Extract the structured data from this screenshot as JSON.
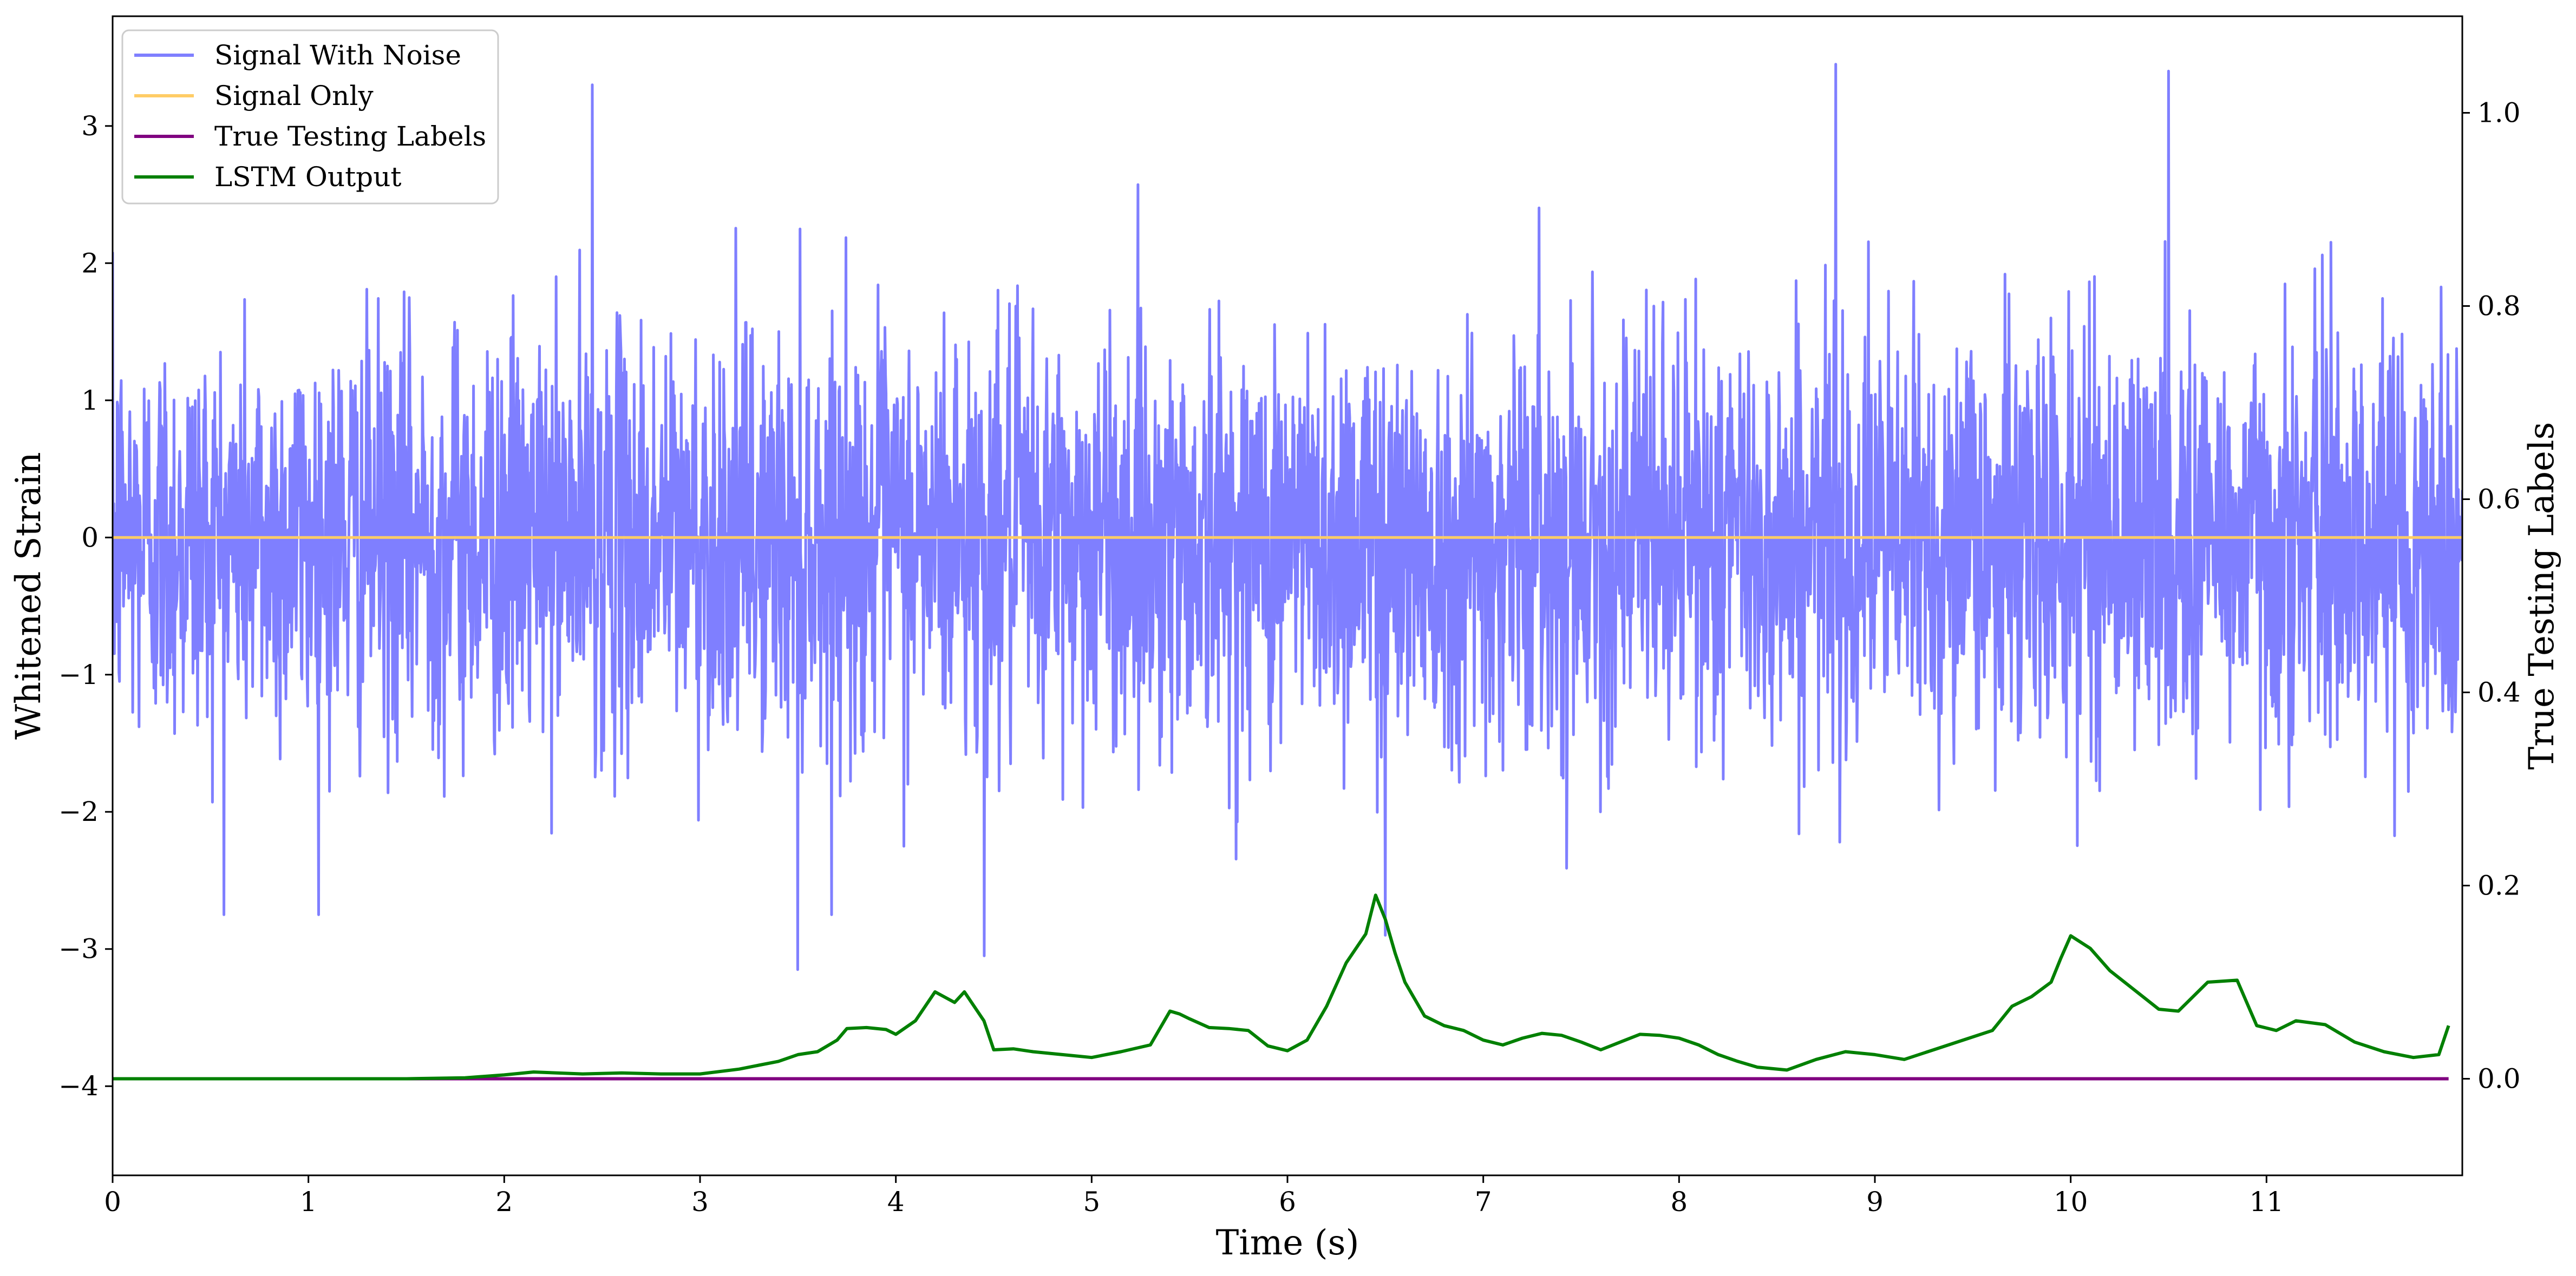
{
  "chart_data": {
    "type": "line",
    "xlabel": "Time (s)",
    "ylabel": "Whitened Strain",
    "y2label": "True Testing Labels",
    "xlim": [
      0,
      12
    ],
    "ylim": [
      -4.65,
      3.8
    ],
    "y2lim": [
      -0.1,
      1.1
    ],
    "xticks": [
      0,
      1,
      2,
      3,
      4,
      5,
      6,
      7,
      8,
      9,
      10,
      11
    ],
    "yticks": [
      -4,
      -3,
      -2,
      -1,
      0,
      1,
      2,
      3
    ],
    "y2ticks": [
      0.0,
      0.2,
      0.4,
      0.6,
      0.8,
      1.0
    ],
    "xtick_labels": [
      "0",
      "1",
      "2",
      "3",
      "4",
      "5",
      "6",
      "7",
      "8",
      "9",
      "10",
      "11"
    ],
    "ytick_labels": [
      "−4",
      "−3",
      "−2",
      "−1",
      "0",
      "1",
      "2",
      "3"
    ],
    "y2tick_labels": [
      "0.0",
      "0.2",
      "0.4",
      "0.6",
      "0.8",
      "1.0"
    ],
    "grid": false,
    "legend_position": "top-left",
    "legend": [
      "Signal With Noise",
      "Signal Only",
      "True Testing Labels",
      "LSTM Output"
    ],
    "series": [
      {
        "name": "Signal With Noise",
        "axis": "left",
        "color": "#7f7fff",
        "x_range": [
          0,
          12
        ],
        "points": 4096,
        "typical_std": 0.75,
        "max": 3.45,
        "min": -3.2,
        "notable_extremes": [
          {
            "x": 8.8,
            "y": 3.45
          },
          {
            "x": 10.5,
            "y": 3.4
          },
          {
            "x": 2.45,
            "y": 3.3
          },
          {
            "x": 4.45,
            "y": -3.05
          },
          {
            "x": 3.5,
            "y": -3.15
          },
          {
            "x": 6.5,
            "y": -2.9
          }
        ]
      },
      {
        "name": "Signal Only",
        "axis": "left",
        "color": "#ffcc66",
        "x": [
          0,
          12
        ],
        "y": [
          0,
          0
        ]
      },
      {
        "name": "True Testing Labels",
        "axis": "right",
        "color": "#800080",
        "x": [
          0,
          11.93
        ],
        "y": [
          0,
          0
        ]
      },
      {
        "name": "LSTM Output",
        "axis": "right",
        "color": "#008000",
        "x": [
          0,
          0.5,
          1.0,
          1.5,
          1.8,
          2.0,
          2.15,
          2.4,
          2.6,
          2.8,
          3.0,
          3.2,
          3.3,
          3.4,
          3.5,
          3.6,
          3.7,
          3.75,
          3.85,
          3.95,
          4.0,
          4.1,
          4.2,
          4.3,
          4.35,
          4.45,
          4.5,
          4.6,
          4.7,
          4.85,
          5.0,
          5.15,
          5.3,
          5.4,
          5.45,
          5.5,
          5.6,
          5.7,
          5.8,
          5.9,
          6.0,
          6.1,
          6.2,
          6.3,
          6.4,
          6.45,
          6.5,
          6.55,
          6.6,
          6.7,
          6.8,
          6.9,
          7.0,
          7.1,
          7.2,
          7.3,
          7.4,
          7.5,
          7.6,
          7.7,
          7.8,
          7.9,
          8.0,
          8.1,
          8.2,
          8.3,
          8.4,
          8.55,
          8.7,
          8.85,
          9.0,
          9.15,
          9.3,
          9.45,
          9.6,
          9.7,
          9.8,
          9.9,
          9.95,
          10.0,
          10.1,
          10.2,
          10.35,
          10.45,
          10.55,
          10.7,
          10.85,
          10.95,
          11.05,
          11.15,
          11.3,
          11.45,
          11.6,
          11.75,
          11.88,
          11.93
        ],
        "y": [
          0.0,
          0.0,
          0.0,
          0.0,
          0.001,
          0.004,
          0.007,
          0.005,
          0.006,
          0.005,
          0.005,
          0.01,
          0.014,
          0.018,
          0.025,
          0.028,
          0.04,
          0.052,
          0.053,
          0.051,
          0.046,
          0.06,
          0.09,
          0.079,
          0.09,
          0.06,
          0.03,
          0.031,
          0.028,
          0.025,
          0.022,
          0.028,
          0.035,
          0.07,
          0.067,
          0.062,
          0.053,
          0.052,
          0.05,
          0.034,
          0.029,
          0.04,
          0.075,
          0.12,
          0.15,
          0.19,
          0.165,
          0.13,
          0.1,
          0.065,
          0.055,
          0.05,
          0.04,
          0.035,
          0.042,
          0.047,
          0.045,
          0.038,
          0.03,
          0.038,
          0.046,
          0.045,
          0.042,
          0.035,
          0.025,
          0.018,
          0.012,
          0.009,
          0.02,
          0.028,
          0.025,
          0.02,
          0.03,
          0.04,
          0.05,
          0.075,
          0.085,
          0.1,
          0.125,
          0.148,
          0.135,
          0.112,
          0.088,
          0.072,
          0.07,
          0.1,
          0.102,
          0.055,
          0.05,
          0.06,
          0.056,
          0.038,
          0.028,
          0.022,
          0.025,
          0.055
        ]
      }
    ]
  }
}
